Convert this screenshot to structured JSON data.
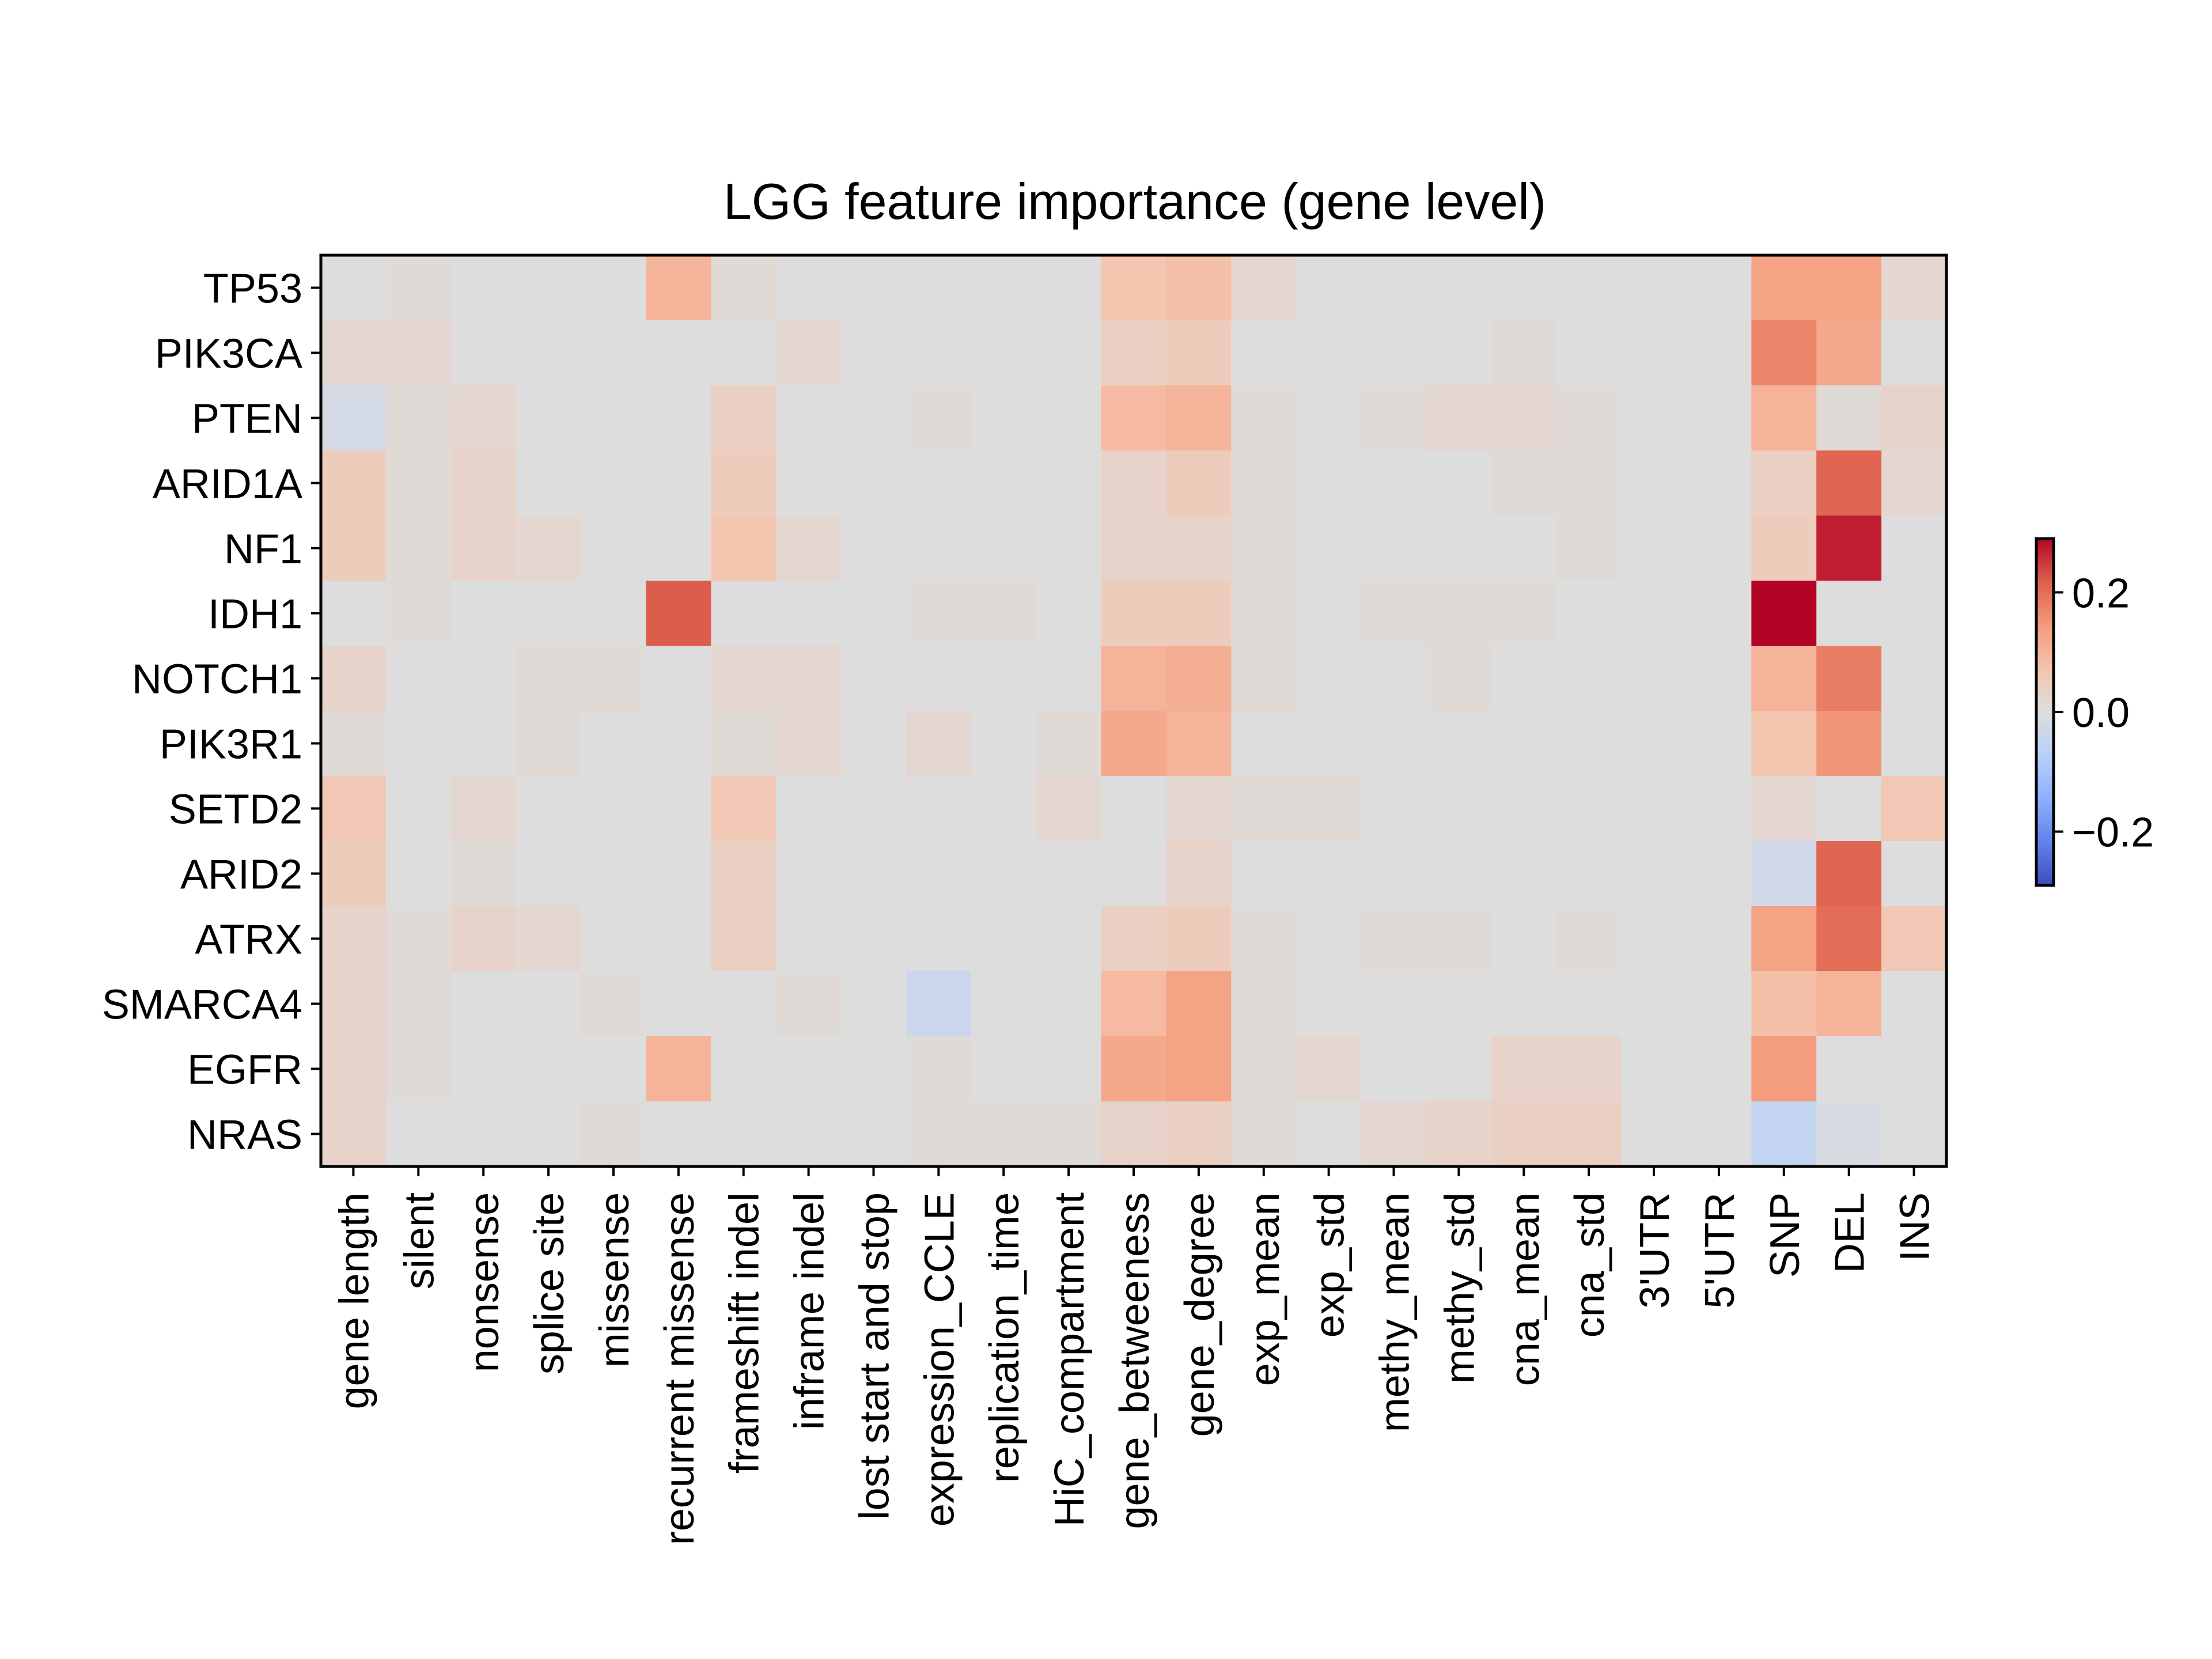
{
  "chart_data": {
    "type": "heatmap",
    "title": "LGG feature importance (gene level)",
    "xlabel": "",
    "ylabel": "",
    "colormap": "coolwarm",
    "colorbar": {
      "range": [
        -0.29,
        0.29
      ],
      "ticks": [
        0.2,
        0.0,
        -0.2
      ],
      "tick_labels": [
        "0.2",
        "0.0",
        "−0.2"
      ],
      "placement": "right"
    },
    "x_labels": [
      "gene length",
      "silent",
      "nonsense",
      "splice site",
      "missense",
      "recurrent missense",
      "frameshift indel",
      "inframe indel",
      "lost start and stop",
      "expression_CCLE",
      "replication_time",
      "HiC_compartment",
      "gene_betweeness",
      "gene_degree",
      "exp_mean",
      "exp_std",
      "methy_mean",
      "methy_std",
      "cna_mean",
      "cna_std",
      "3'UTR",
      "5'UTR",
      "SNP",
      "DEL",
      "INS"
    ],
    "y_labels": [
      "TP53",
      "PIK3CA",
      "PTEN",
      "ARID1A",
      "NF1",
      "IDH1",
      "NOTCH1",
      "PIK3R1",
      "SETD2",
      "ARID2",
      "ATRX",
      "SMARCA4",
      "EGFR",
      "NRAS"
    ],
    "values": [
      [
        0.0,
        0.01,
        0.0,
        0.0,
        0.0,
        0.1,
        0.01,
        0.0,
        0.0,
        0.0,
        0.0,
        0.0,
        0.07,
        0.08,
        0.02,
        0.0,
        0.0,
        0.0,
        0.0,
        0.0,
        0.0,
        0.0,
        0.13,
        0.13,
        0.02
      ],
      [
        0.02,
        0.02,
        0.0,
        0.0,
        0.0,
        0.0,
        0.0,
        0.02,
        0.0,
        0.0,
        0.0,
        0.0,
        0.04,
        0.05,
        0.0,
        0.0,
        0.0,
        0.0,
        0.01,
        0.0,
        0.0,
        0.0,
        0.17,
        0.12,
        0.0
      ],
      [
        -0.02,
        0.01,
        0.02,
        0.0,
        0.0,
        0.0,
        0.04,
        0.0,
        0.0,
        0.01,
        0.0,
        0.0,
        0.09,
        0.1,
        0.01,
        0.0,
        0.01,
        0.02,
        0.02,
        0.01,
        0.0,
        0.0,
        0.1,
        0.01,
        0.03
      ],
      [
        0.05,
        0.01,
        0.03,
        0.0,
        0.0,
        0.0,
        0.05,
        0.0,
        0.0,
        0.0,
        0.0,
        0.0,
        0.03,
        0.05,
        0.01,
        0.0,
        0.0,
        0.0,
        0.01,
        0.01,
        0.0,
        0.0,
        0.04,
        0.21,
        0.02
      ],
      [
        0.05,
        0.01,
        0.03,
        0.02,
        0.0,
        0.0,
        0.07,
        0.02,
        0.0,
        0.0,
        0.0,
        0.0,
        0.03,
        0.03,
        0.01,
        0.0,
        0.0,
        0.0,
        0.0,
        0.01,
        0.0,
        0.0,
        0.05,
        0.27,
        0.0
      ],
      [
        0.0,
        0.01,
        0.0,
        0.0,
        0.0,
        0.22,
        0.0,
        0.0,
        0.0,
        0.01,
        0.01,
        0.0,
        0.05,
        0.05,
        0.01,
        0.0,
        0.01,
        0.01,
        0.01,
        0.0,
        0.0,
        0.0,
        0.29,
        0.0,
        0.0
      ],
      [
        0.03,
        0.0,
        0.0,
        0.01,
        0.01,
        0.0,
        0.02,
        0.02,
        0.0,
        0.0,
        0.0,
        0.0,
        0.1,
        0.11,
        0.01,
        0.0,
        0.0,
        0.01,
        0.0,
        0.0,
        0.0,
        0.0,
        0.1,
        0.18,
        0.0
      ],
      [
        0.01,
        0.0,
        0.0,
        0.01,
        0.0,
        0.0,
        0.01,
        0.02,
        0.0,
        0.02,
        0.0,
        0.01,
        0.12,
        0.1,
        0.0,
        0.0,
        0.0,
        0.0,
        0.0,
        0.0,
        0.0,
        0.0,
        0.07,
        0.15,
        0.0
      ],
      [
        0.06,
        0.0,
        0.02,
        0.0,
        0.0,
        0.0,
        0.06,
        0.0,
        0.0,
        0.0,
        0.0,
        0.02,
        0.0,
        0.02,
        0.01,
        0.01,
        0.0,
        0.0,
        0.0,
        0.0,
        0.0,
        0.0,
        0.02,
        0.0,
        0.06
      ],
      [
        0.05,
        0.0,
        0.01,
        0.0,
        0.0,
        0.0,
        0.04,
        0.0,
        0.0,
        0.0,
        0.0,
        0.0,
        0.0,
        0.03,
        0.0,
        0.0,
        0.0,
        0.0,
        0.0,
        0.0,
        0.0,
        0.0,
        -0.03,
        0.21,
        0.0
      ],
      [
        0.03,
        0.01,
        0.03,
        0.02,
        0.0,
        0.0,
        0.04,
        0.0,
        0.0,
        0.0,
        0.0,
        0.0,
        0.04,
        0.05,
        0.01,
        0.0,
        0.01,
        0.01,
        0.0,
        0.01,
        0.0,
        0.0,
        0.13,
        0.2,
        0.06
      ],
      [
        0.03,
        0.01,
        0.0,
        0.0,
        0.01,
        0.0,
        0.0,
        0.01,
        0.0,
        -0.04,
        0.0,
        0.0,
        0.09,
        0.13,
        0.01,
        0.0,
        0.0,
        0.0,
        0.0,
        0.0,
        0.0,
        0.0,
        0.08,
        0.1,
        0.0
      ],
      [
        0.03,
        0.01,
        0.0,
        0.0,
        0.0,
        0.1,
        0.0,
        0.0,
        0.0,
        0.01,
        0.0,
        0.0,
        0.12,
        0.13,
        0.01,
        0.02,
        0.0,
        0.0,
        0.03,
        0.03,
        0.0,
        0.0,
        0.14,
        0.0,
        0.0
      ],
      [
        0.03,
        0.0,
        0.0,
        0.0,
        0.01,
        0.0,
        0.0,
        0.0,
        0.0,
        0.01,
        0.01,
        0.01,
        0.03,
        0.04,
        0.01,
        0.0,
        0.02,
        0.03,
        0.04,
        0.04,
        0.0,
        0.0,
        -0.05,
        -0.01,
        0.0
      ]
    ]
  }
}
